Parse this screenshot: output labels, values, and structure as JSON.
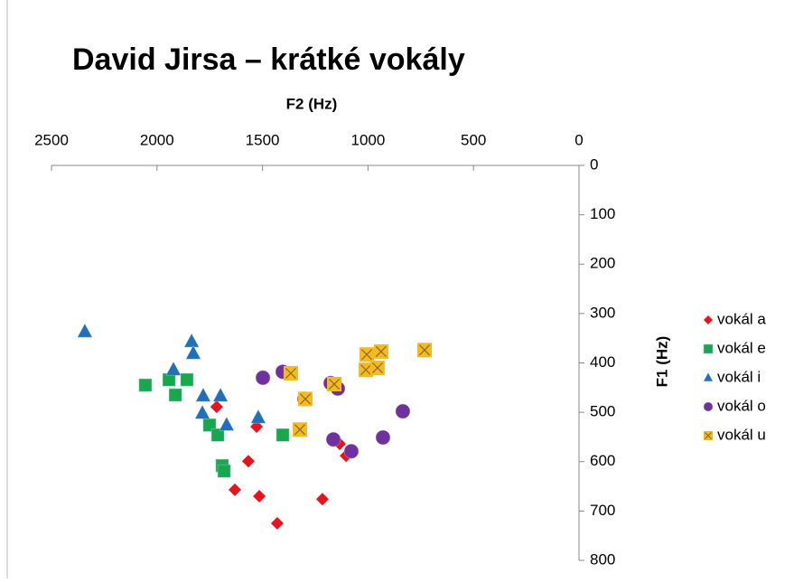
{
  "chart_data": {
    "type": "scatter",
    "title": "David Jirsa – krátké vokály",
    "x_label": "F2 (Hz)",
    "y_label": "F1 (Hz)",
    "xlim": [
      2500,
      0
    ],
    "ylim": [
      0,
      800
    ],
    "x_reversed": true,
    "y_reversed": true,
    "xticks": [
      2500,
      2000,
      1500,
      1000,
      500,
      0
    ],
    "yticks": [
      0,
      100,
      200,
      300,
      400,
      500,
      600,
      700,
      800
    ],
    "legend": "right",
    "series": [
      {
        "name": "vokál a",
        "color": "#e8131b",
        "marker": "diamond",
        "x": [
          1717,
          1528,
          1134,
          1104,
          1567,
          1631,
          1515,
          1216,
          1430
        ],
        "values": [
          489,
          529,
          564,
          588,
          599,
          657,
          670,
          676,
          725
        ]
      },
      {
        "name": "vokál e",
        "color": "#17a84e",
        "marker": "square",
        "x": [
          2055,
          1943,
          1858,
          1913,
          1751,
          1712,
          1691,
          1682,
          1404
        ],
        "values": [
          445,
          434,
          434,
          465,
          526,
          546,
          608,
          619,
          546
        ]
      },
      {
        "name": "vokál i",
        "color": "#1f6fba",
        "marker": "triangle",
        "x": [
          2342,
          1836,
          1828,
          1922,
          1781,
          1699,
          1785,
          1670,
          1520
        ],
        "values": [
          337,
          357,
          381,
          414,
          467,
          467,
          502,
          526,
          511
        ]
      },
      {
        "name": "vokál o",
        "color": "#7030a0",
        "marker": "circle",
        "x": [
          1498,
          1404,
          1301,
          1177,
          1143,
          835,
          1164,
          1079,
          929
        ],
        "values": [
          430,
          418,
          473,
          441,
          452,
          498,
          555,
          579,
          551
        ]
      },
      {
        "name": "vokál u",
        "color": "#f5b921",
        "marker": "xsquare",
        "x": [
          1366,
          1297,
          1160,
          1006,
          938,
          732,
          1010,
          955,
          1323
        ],
        "values": [
          421,
          473,
          443,
          383,
          377,
          374,
          414,
          410,
          535
        ]
      }
    ]
  }
}
